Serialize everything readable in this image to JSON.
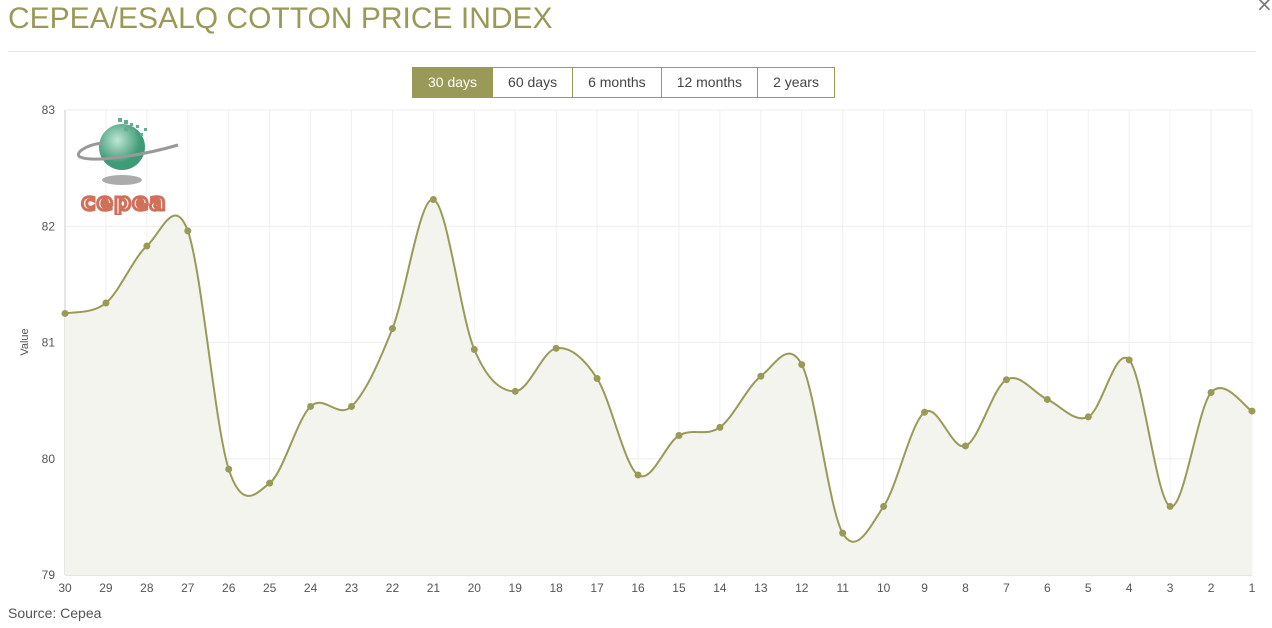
{
  "title": "CEPEA/ESALQ COTTON PRICE INDEX",
  "close_icon": "close-icon",
  "range_buttons": [
    {
      "label": "30 days",
      "active": true
    },
    {
      "label": "60 days",
      "active": false
    },
    {
      "label": "6 months",
      "active": false
    },
    {
      "label": "12 months",
      "active": false
    },
    {
      "label": "2 years",
      "active": false
    }
  ],
  "logo_text": "cepea",
  "source": "Source: Cepea",
  "colors": {
    "accent": "#9a9a58",
    "fill": "#f4f4ee",
    "logo_red": "#d0705a",
    "logo_green": "#4fa585"
  },
  "chart_data": {
    "type": "area",
    "title": "CEPEA/ESALQ COTTON PRICE INDEX",
    "xlabel": "",
    "ylabel": "Value",
    "ylim": [
      79,
      83
    ],
    "yticks": [
      "79",
      "80",
      "81",
      "82",
      "83"
    ],
    "grid": true,
    "categories": [
      "30",
      "29",
      "28",
      "27",
      "26",
      "25",
      "24",
      "23",
      "22",
      "21",
      "20",
      "19",
      "18",
      "17",
      "16",
      "15",
      "14",
      "13",
      "12",
      "11",
      "10",
      "9",
      "8",
      "7",
      "6",
      "5",
      "4",
      "3",
      "2",
      "1"
    ],
    "values": [
      81.25,
      81.34,
      81.83,
      81.96,
      79.91,
      79.79,
      80.45,
      80.45,
      81.12,
      82.23,
      80.94,
      80.58,
      80.95,
      80.69,
      79.86,
      80.2,
      80.27,
      80.71,
      80.81,
      79.36,
      79.59,
      80.4,
      80.11,
      80.68,
      80.51,
      80.36,
      80.85,
      79.59,
      80.57,
      80.41
    ]
  }
}
